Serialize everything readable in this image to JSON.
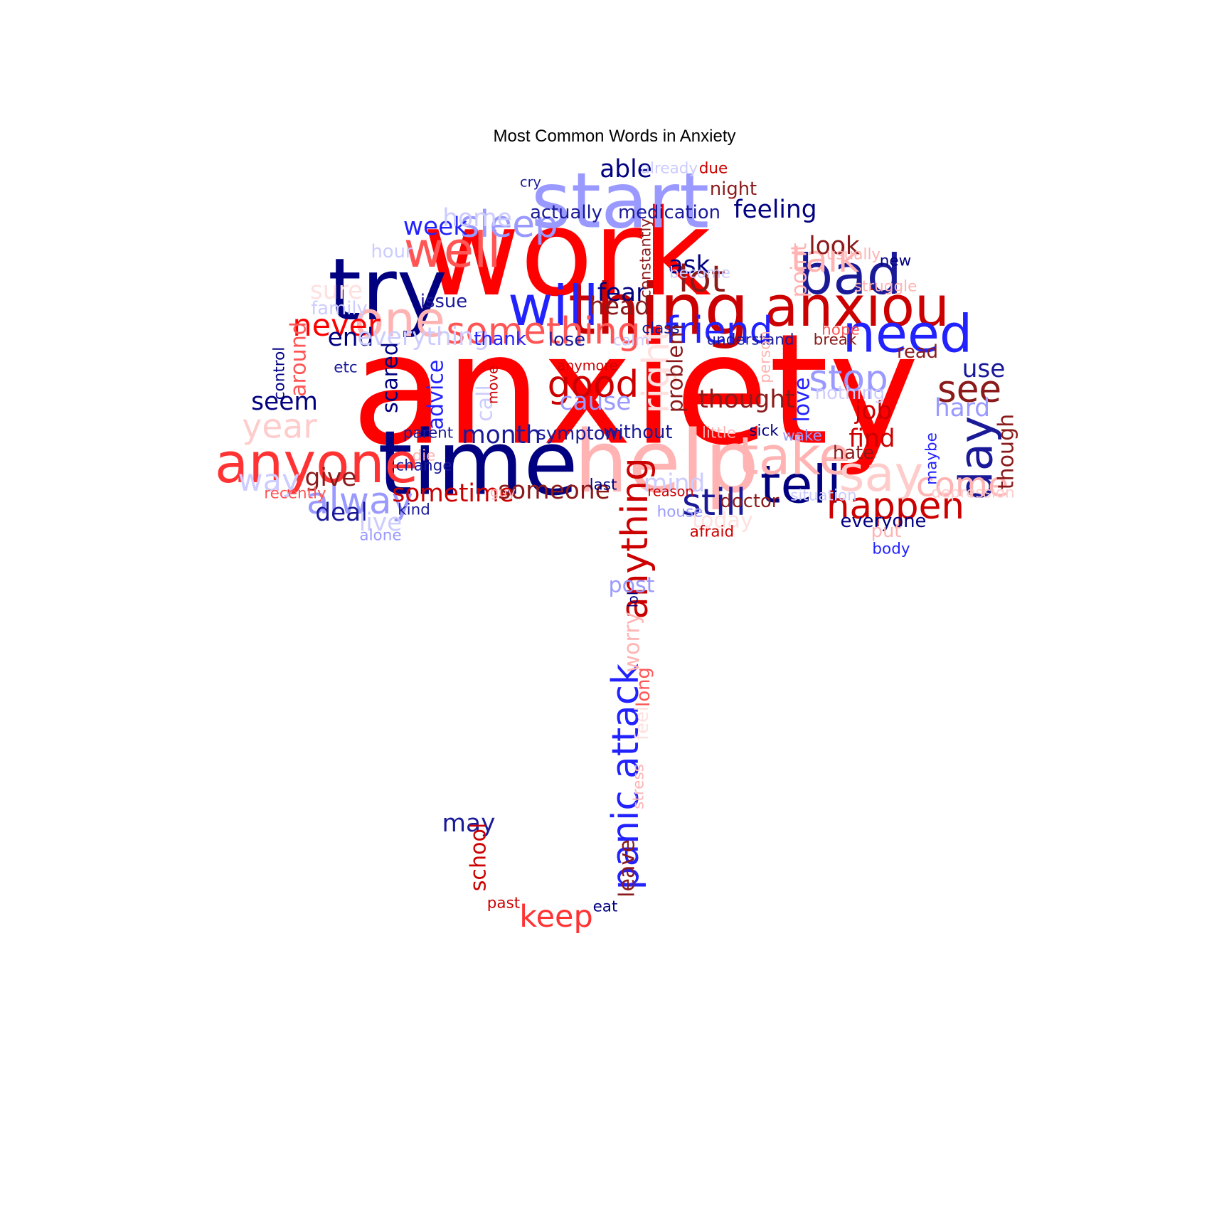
{
  "chart_data": {
    "type": "wordcloud",
    "title": "Most Common Words in Anxiety",
    "shape": "umbrella",
    "palette": [
      "#ff0000",
      "#ff5555",
      "#ffb3b3",
      "#cc0000",
      "#8b1a1a",
      "#000080",
      "#1a1a99",
      "#2222ff",
      "#9999ff",
      "#ccccff"
    ],
    "words": [
      {
        "text": "anxiety",
        "weight": 100,
        "color": "#ff0000",
        "rotate": 0
      },
      {
        "text": "work",
        "weight": 78,
        "color": "#ff0000",
        "rotate": 0
      },
      {
        "text": "time",
        "weight": 58,
        "color": "#000080",
        "rotate": 0
      },
      {
        "text": "help",
        "weight": 56,
        "color": "#ffb3b3",
        "rotate": 0
      },
      {
        "text": "try",
        "weight": 56,
        "color": "#000080",
        "rotate": 0
      },
      {
        "text": "start",
        "weight": 50,
        "color": "#9999ff",
        "rotate": 0
      },
      {
        "text": "thing",
        "weight": 46,
        "color": "#cc0000",
        "rotate": 0
      },
      {
        "text": "anyone",
        "weight": 36,
        "color": "#ff3333",
        "rotate": 0
      },
      {
        "text": "anxiou",
        "weight": 36,
        "color": "#cc0000",
        "rotate": 0
      },
      {
        "text": "will",
        "weight": 36,
        "color": "#2222ff",
        "rotate": 0
      },
      {
        "text": "bad",
        "weight": 36,
        "color": "#1a1a99",
        "rotate": 0
      },
      {
        "text": "tell",
        "weight": 34,
        "color": "#000080",
        "rotate": 0
      },
      {
        "text": "need",
        "weight": 34,
        "color": "#2222ff",
        "rotate": 0
      },
      {
        "text": "take",
        "weight": 34,
        "color": "#ffb3b3",
        "rotate": 0
      },
      {
        "text": "well",
        "weight": 32,
        "color": "#ff5555",
        "rotate": 0
      },
      {
        "text": "one",
        "weight": 32,
        "color": "#ffb3b3",
        "rotate": 0
      },
      {
        "text": "say",
        "weight": 32,
        "color": "#ffcccc",
        "rotate": 0
      },
      {
        "text": "day",
        "weight": 30,
        "color": "#1a1a99",
        "rotate": -90
      },
      {
        "text": "sleep",
        "weight": 24,
        "color": "#9999ff",
        "rotate": 0
      },
      {
        "text": "something",
        "weight": 24,
        "color": "#ff5555",
        "rotate": 0
      },
      {
        "text": "friend",
        "weight": 24,
        "color": "#2222ff",
        "rotate": 0
      },
      {
        "text": "lot",
        "weight": 24,
        "color": "#8b1a1a",
        "rotate": 0
      },
      {
        "text": "talk",
        "weight": 24,
        "color": "#ffb3b3",
        "rotate": 0
      },
      {
        "text": "stop",
        "weight": 24,
        "color": "#9999ff",
        "rotate": 0
      },
      {
        "text": "see",
        "weight": 24,
        "color": "#8b1a1a",
        "rotate": 0
      },
      {
        "text": "good",
        "weight": 24,
        "color": "#cc0000",
        "rotate": 0
      },
      {
        "text": "happen",
        "weight": 24,
        "color": "#cc0000",
        "rotate": 0
      },
      {
        "text": "still",
        "weight": 24,
        "color": "#1a1a99",
        "rotate": 0
      },
      {
        "text": "alway",
        "weight": 24,
        "color": "#9999ff",
        "rotate": 0
      },
      {
        "text": "right",
        "weight": 24,
        "color": "#ffe0e0",
        "rotate": -90
      },
      {
        "text": "anything",
        "weight": 24,
        "color": "#cc0000",
        "rotate": -90
      },
      {
        "text": "panic attack",
        "weight": 24,
        "color": "#2222ff",
        "rotate": -90
      },
      {
        "text": "come",
        "weight": 22,
        "color": "#ffb3b3",
        "rotate": 0
      },
      {
        "text": "year",
        "weight": 22,
        "color": "#ffcccc",
        "rotate": 0
      },
      {
        "text": "never",
        "weight": 20,
        "color": "#ff0000",
        "rotate": 0
      },
      {
        "text": "keep",
        "weight": 20,
        "color": "#ff3333",
        "rotate": 0
      },
      {
        "text": "way",
        "weight": 20,
        "color": "#ccccff",
        "rotate": 0
      },
      {
        "text": "feeling",
        "weight": 16,
        "color": "#000080",
        "rotate": 0
      },
      {
        "text": "able",
        "weight": 16,
        "color": "#000080",
        "rotate": 0
      },
      {
        "text": "week",
        "weight": 16,
        "color": "#2222ff",
        "rotate": 0
      },
      {
        "text": "look",
        "weight": 16,
        "color": "#8b1a1a",
        "rotate": 0
      },
      {
        "text": "fear",
        "weight": 16,
        "color": "#000080",
        "rotate": 0
      },
      {
        "text": "head",
        "weight": 16,
        "color": "#8b1a1a",
        "rotate": 0
      },
      {
        "text": "ask",
        "weight": 16,
        "color": "#000080",
        "rotate": 0
      },
      {
        "text": "end",
        "weight": 16,
        "color": "#000080",
        "rotate": 0
      },
      {
        "text": "everything",
        "weight": 16,
        "color": "#ccccff",
        "rotate": 0
      },
      {
        "text": "hard",
        "weight": 16,
        "color": "#9999ff",
        "rotate": 0
      },
      {
        "text": "use",
        "weight": 16,
        "color": "#1a1a99",
        "rotate": 0
      },
      {
        "text": "job",
        "weight": 16,
        "color": "#cc0000",
        "rotate": 0
      },
      {
        "text": "find",
        "weight": 16,
        "color": "#cc0000",
        "rotate": 0
      },
      {
        "text": "seem",
        "weight": 16,
        "color": "#000080",
        "rotate": 0
      },
      {
        "text": "cause",
        "weight": 16,
        "color": "#9999ff",
        "rotate": 0
      },
      {
        "text": "thought",
        "weight": 16,
        "color": "#8b1a1a",
        "rotate": 0
      },
      {
        "text": "month",
        "weight": 16,
        "color": "#1a1a99",
        "rotate": 0
      },
      {
        "text": "give",
        "weight": 16,
        "color": "#8b1a1a",
        "rotate": 0
      },
      {
        "text": "sometime",
        "weight": 16,
        "color": "#cc0000",
        "rotate": 0
      },
      {
        "text": "someone",
        "weight": 16,
        "color": "#8b1a1a",
        "rotate": 0
      },
      {
        "text": "mind",
        "weight": 16,
        "color": "#ccccff",
        "rotate": 0
      },
      {
        "text": "deal",
        "weight": 16,
        "color": "#1a1a99",
        "rotate": 0
      },
      {
        "text": "live",
        "weight": 16,
        "color": "#ccccff",
        "rotate": 0
      },
      {
        "text": "home",
        "weight": 16,
        "color": "#ccccff",
        "rotate": 0
      },
      {
        "text": "sure",
        "weight": 16,
        "color": "#ffe0e0",
        "rotate": 0
      },
      {
        "text": "may",
        "weight": 16,
        "color": "#1a1a99",
        "rotate": 0
      },
      {
        "text": "post",
        "weight": 14,
        "color": "#9999ff",
        "rotate": 0
      },
      {
        "text": "today",
        "weight": 14,
        "color": "#ffe0e0",
        "rotate": 0
      },
      {
        "text": "around",
        "weight": 14,
        "color": "#ff5555",
        "rotate": -90
      },
      {
        "text": "scared",
        "weight": 14,
        "color": "#000080",
        "rotate": -90
      },
      {
        "text": "advice",
        "weight": 14,
        "color": "#2222ff",
        "rotate": -90
      },
      {
        "text": "call",
        "weight": 14,
        "color": "#ccccff",
        "rotate": -90
      },
      {
        "text": "problem",
        "weight": 14,
        "color": "#8b1a1a",
        "rotate": -90
      },
      {
        "text": "love",
        "weight": 14,
        "color": "#2222ff",
        "rotate": -90
      },
      {
        "text": "point",
        "weight": 14,
        "color": "#ffb3b3",
        "rotate": -90
      },
      {
        "text": "though",
        "weight": 14,
        "color": "#8b1a1a",
        "rotate": -90
      },
      {
        "text": "worry",
        "weight": 14,
        "color": "#ffb3b3",
        "rotate": -90
      },
      {
        "text": "school",
        "weight": 14,
        "color": "#cc0000",
        "rotate": -90
      },
      {
        "text": "leave",
        "weight": 14,
        "color": "#8b1a1a",
        "rotate": -90
      },
      {
        "text": "night",
        "weight": 12,
        "color": "#8b1a1a",
        "rotate": 0
      },
      {
        "text": "actually",
        "weight": 12,
        "color": "#1a1a99",
        "rotate": 0
      },
      {
        "text": "medication",
        "weight": 12,
        "color": "#1a1a99",
        "rotate": 0
      },
      {
        "text": "family",
        "weight": 12,
        "color": "#ccccff",
        "rotate": 0
      },
      {
        "text": "issue",
        "weight": 12,
        "color": "#1a1a99",
        "rotate": 0
      },
      {
        "text": "thank",
        "weight": 12,
        "color": "#2222ff",
        "rotate": 0
      },
      {
        "text": "lose",
        "weight": 12,
        "color": "#1a1a99",
        "rotate": 0
      },
      {
        "text": "symptom",
        "weight": 12,
        "color": "#1a1a99",
        "rotate": 0
      },
      {
        "text": "without",
        "weight": 12,
        "color": "#1a1a99",
        "rotate": 0
      },
      {
        "text": "hate",
        "weight": 12,
        "color": "#8b1a1a",
        "rotate": 0
      },
      {
        "text": "doctor",
        "weight": 12,
        "color": "#8b1a1a",
        "rotate": 0
      },
      {
        "text": "everyone",
        "weight": 12,
        "color": "#000080",
        "rotate": 0
      },
      {
        "text": "put",
        "weight": 12,
        "color": "#ffb3b3",
        "rotate": 0
      },
      {
        "text": "read",
        "weight": 12,
        "color": "#8b1a1a",
        "rotate": 0
      },
      {
        "text": "nothing",
        "weight": 12,
        "color": "#ccccff",
        "rotate": 0
      },
      {
        "text": "hour",
        "weight": 12,
        "color": "#ccccff",
        "rotate": 0
      },
      {
        "text": "new",
        "weight": 10,
        "color": "#000080",
        "rotate": 0
      },
      {
        "text": "usually",
        "weight": 10,
        "color": "#ffb3b3",
        "rotate": 0
      },
      {
        "text": "struggle",
        "weight": 10,
        "color": "#ffb3b3",
        "rotate": 0
      },
      {
        "text": "become",
        "weight": 10,
        "color": "#ccccff",
        "rotate": 0
      },
      {
        "text": "class",
        "weight": 10,
        "color": "#1a1a99",
        "rotate": 0
      },
      {
        "text": "calm",
        "weight": 10,
        "color": "#ccccff",
        "rotate": 0
      },
      {
        "text": "understand",
        "weight": 10,
        "color": "#1a1a99",
        "rotate": 0
      },
      {
        "text": "hope",
        "weight": 10,
        "color": "#ff5555",
        "rotate": 0
      },
      {
        "text": "break",
        "weight": 10,
        "color": "#8b1a1a",
        "rotate": 0
      },
      {
        "text": "etc",
        "weight": 10,
        "color": "#1a1a99",
        "rotate": 0
      },
      {
        "text": "anymore",
        "weight": 9,
        "color": "#cc0000",
        "rotate": 0
      },
      {
        "text": "parent",
        "weight": 10,
        "color": "#1a1a99",
        "rotate": 0
      },
      {
        "text": "little",
        "weight": 10,
        "color": "#ffb3b3",
        "rotate": 0
      },
      {
        "text": "sick",
        "weight": 10,
        "color": "#000080",
        "rotate": 0
      },
      {
        "text": "wake",
        "weight": 10,
        "color": "#9999ff",
        "rotate": 0
      },
      {
        "text": "die",
        "weight": 10,
        "color": "#ffb3b3",
        "rotate": 0
      },
      {
        "text": "change",
        "weight": 10,
        "color": "#1a1a99",
        "rotate": 0
      },
      {
        "text": "last",
        "weight": 10,
        "color": "#000080",
        "rotate": 0
      },
      {
        "text": "reason",
        "weight": 9,
        "color": "#cc0000",
        "rotate": 0
      },
      {
        "text": "situation",
        "weight": 10,
        "color": "#ccccff",
        "rotate": 0
      },
      {
        "text": "depression",
        "weight": 10,
        "color": "#ffcccc",
        "rotate": 0
      },
      {
        "text": "recently",
        "weight": 10,
        "color": "#ff5555",
        "rotate": 0
      },
      {
        "text": "guy",
        "weight": 9,
        "color": "#ffb3b3",
        "rotate": 0
      },
      {
        "text": "kind",
        "weight": 10,
        "color": "#1a1a99",
        "rotate": 0
      },
      {
        "text": "house",
        "weight": 10,
        "color": "#9999ff",
        "rotate": 0
      },
      {
        "text": "afraid",
        "weight": 10,
        "color": "#cc0000",
        "rotate": 0
      },
      {
        "text": "alone",
        "weight": 10,
        "color": "#9999ff",
        "rotate": 0
      },
      {
        "text": "body",
        "weight": 10,
        "color": "#2222ff",
        "rotate": 0
      },
      {
        "text": "already",
        "weight": 10,
        "color": "#ccccff",
        "rotate": 0
      },
      {
        "text": "due",
        "weight": 10,
        "color": "#cc0000",
        "rotate": 0
      },
      {
        "text": "cry",
        "weight": 9,
        "color": "#1a1a99",
        "rotate": 0
      },
      {
        "text": "past",
        "weight": 10,
        "color": "#cc0000",
        "rotate": 0
      },
      {
        "text": "eat",
        "weight": 10,
        "color": "#000080",
        "rotate": 0
      },
      {
        "text": "control",
        "weight": 10,
        "color": "#000080",
        "rotate": -90
      },
      {
        "text": "person",
        "weight": 10,
        "color": "#ffb3b3",
        "rotate": -90
      },
      {
        "text": "maybe",
        "weight": 10,
        "color": "#2222ff",
        "rotate": -90
      },
      {
        "text": "constantly",
        "weight": 10,
        "color": "#8b1a1a",
        "rotate": -90
      },
      {
        "text": "move",
        "weight": 9,
        "color": "#cc0000",
        "rotate": -90
      },
      {
        "text": "lol",
        "weight": 9,
        "color": "#000080",
        "rotate": -90
      },
      {
        "text": "long",
        "weight": 12,
        "color": "#ff5555",
        "rotate": -90
      },
      {
        "text": "feel",
        "weight": 12,
        "color": "#ffe0e0",
        "rotate": -90
      },
      {
        "text": "stress",
        "weight": 10,
        "color": "#ffb3b3",
        "rotate": -90
      }
    ]
  }
}
